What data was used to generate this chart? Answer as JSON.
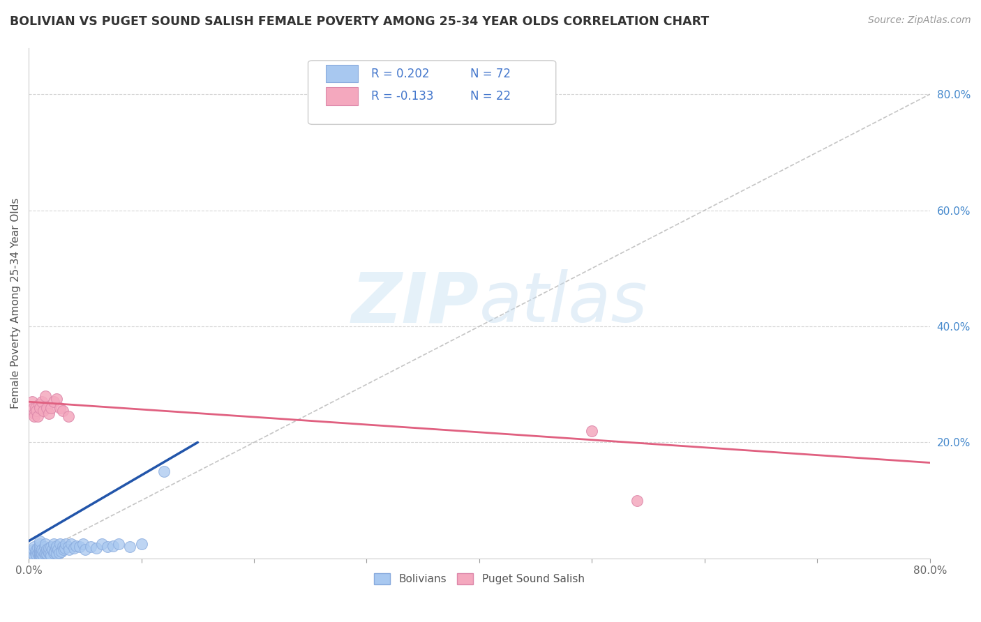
{
  "title": "BOLIVIAN VS PUGET SOUND SALISH FEMALE POVERTY AMONG 25-34 YEAR OLDS CORRELATION CHART",
  "source": "Source: ZipAtlas.com",
  "ylabel": "Female Poverty Among 25-34 Year Olds",
  "xlim": [
    0.0,
    0.8
  ],
  "ylim": [
    0.0,
    0.88
  ],
  "xtick_positions": [
    0.0,
    0.1,
    0.2,
    0.3,
    0.4,
    0.5,
    0.6,
    0.7,
    0.8
  ],
  "ytick_right_labels": [
    "20.0%",
    "40.0%",
    "60.0%",
    "80.0%"
  ],
  "ytick_right_vals": [
    0.2,
    0.4,
    0.6,
    0.8
  ],
  "grid_color": "#cccccc",
  "background_color": "#ffffff",
  "bolivians_color": "#a8c8f0",
  "puget_color": "#f4a8be",
  "blue_line_color": "#2255aa",
  "pink_line_color": "#e06080",
  "diagonal_color": "#bbbbbb",
  "legend_R_bolivians": "R = 0.202",
  "legend_N_bolivians": "N = 72",
  "legend_R_puget": "R = -0.133",
  "legend_N_puget": "N = 22",
  "legend_color_R": "#4477cc",
  "legend_color_N": "#4477cc",
  "watermark_zip": "ZIP",
  "watermark_atlas": "atlas",
  "bolivians_x": [
    0.003,
    0.004,
    0.005,
    0.005,
    0.006,
    0.006,
    0.007,
    0.007,
    0.008,
    0.008,
    0.009,
    0.009,
    0.01,
    0.01,
    0.01,
    0.01,
    0.01,
    0.01,
    0.01,
    0.01,
    0.01,
    0.01,
    0.011,
    0.011,
    0.012,
    0.012,
    0.013,
    0.013,
    0.014,
    0.014,
    0.015,
    0.015,
    0.016,
    0.016,
    0.017,
    0.018,
    0.018,
    0.019,
    0.02,
    0.02,
    0.021,
    0.022,
    0.022,
    0.023,
    0.024,
    0.025,
    0.025,
    0.026,
    0.027,
    0.028,
    0.029,
    0.03,
    0.031,
    0.032,
    0.033,
    0.035,
    0.036,
    0.038,
    0.04,
    0.042,
    0.045,
    0.048,
    0.05,
    0.055,
    0.06,
    0.065,
    0.07,
    0.075,
    0.08,
    0.09,
    0.1,
    0.12
  ],
  "bolivians_y": [
    0.01,
    0.015,
    0.005,
    0.02,
    0.008,
    0.012,
    0.006,
    0.015,
    0.01,
    0.018,
    0.005,
    0.012,
    0.003,
    0.006,
    0.008,
    0.01,
    0.012,
    0.015,
    0.018,
    0.02,
    0.025,
    0.03,
    0.005,
    0.01,
    0.008,
    0.015,
    0.005,
    0.012,
    0.008,
    0.02,
    0.01,
    0.025,
    0.008,
    0.015,
    0.012,
    0.01,
    0.018,
    0.008,
    0.005,
    0.02,
    0.015,
    0.01,
    0.025,
    0.012,
    0.018,
    0.008,
    0.022,
    0.015,
    0.01,
    0.025,
    0.012,
    0.02,
    0.015,
    0.018,
    0.025,
    0.02,
    0.015,
    0.025,
    0.018,
    0.022,
    0.02,
    0.025,
    0.015,
    0.02,
    0.018,
    0.025,
    0.02,
    0.022,
    0.025,
    0.02,
    0.025,
    0.15
  ],
  "puget_x": [
    0.003,
    0.004,
    0.005,
    0.005,
    0.006,
    0.007,
    0.008,
    0.009,
    0.01,
    0.012,
    0.013,
    0.015,
    0.016,
    0.018,
    0.02,
    0.022,
    0.025,
    0.028,
    0.03,
    0.035,
    0.5,
    0.54
  ],
  "puget_y": [
    0.27,
    0.26,
    0.25,
    0.245,
    0.26,
    0.255,
    0.245,
    0.265,
    0.26,
    0.27,
    0.255,
    0.28,
    0.26,
    0.25,
    0.26,
    0.27,
    0.275,
    0.26,
    0.255,
    0.245,
    0.22,
    0.1
  ],
  "blue_line_x": [
    0.0,
    0.15
  ],
  "blue_line_y": [
    0.03,
    0.2
  ],
  "pink_line_x": [
    0.0,
    0.8
  ],
  "pink_line_y": [
    0.27,
    0.165
  ]
}
